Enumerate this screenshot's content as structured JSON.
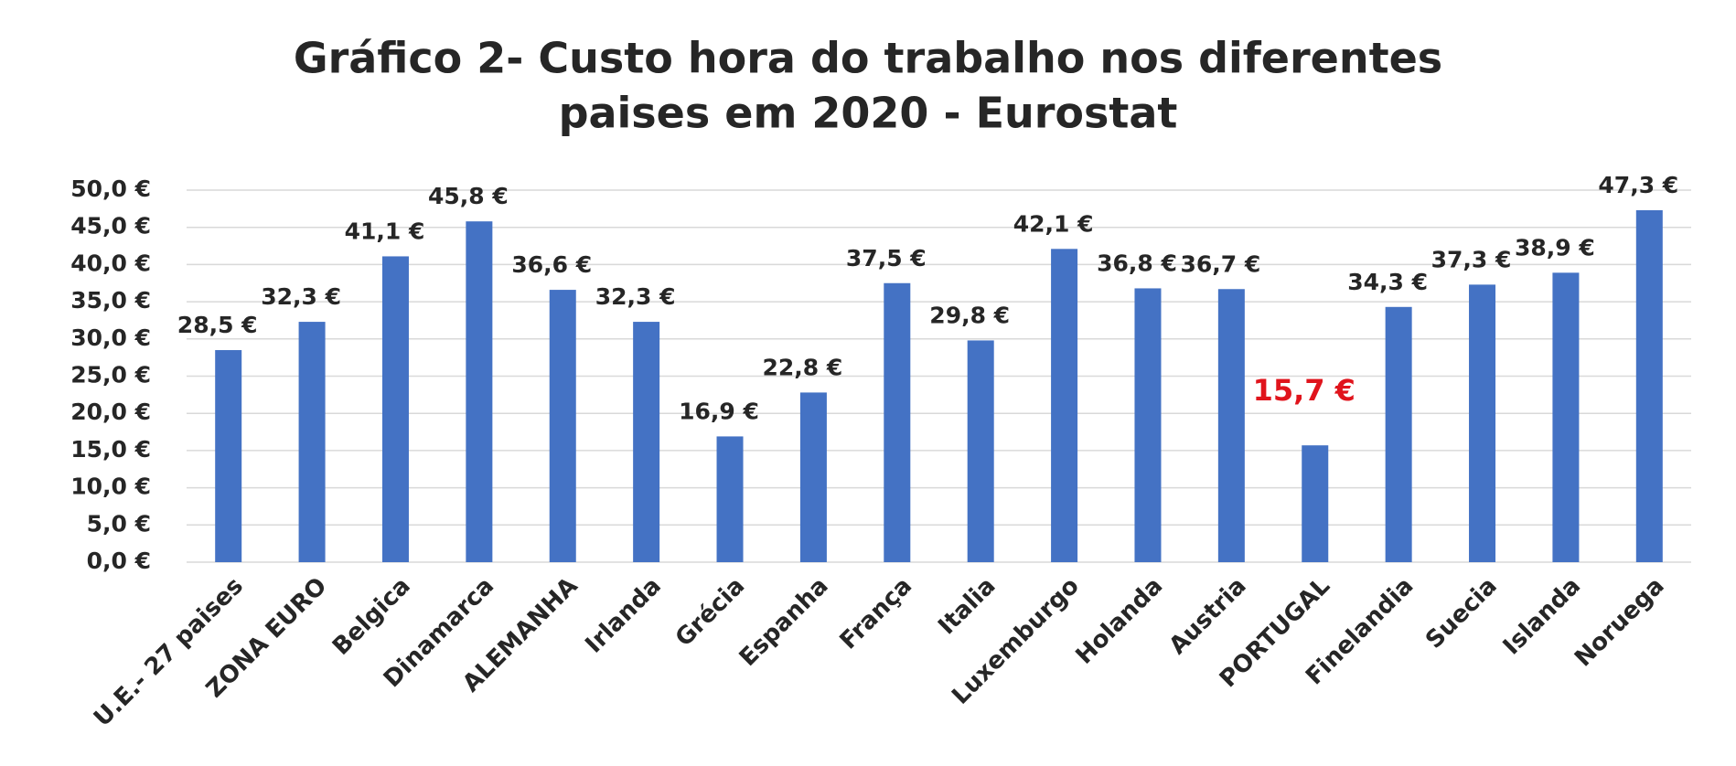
{
  "chart_data": {
    "type": "bar",
    "title": "Gráfico 2- Custo hora do trabalho  nos diferentes",
    "subtitle": "paises em 2020 - Eurostat",
    "categories": [
      "U.E.- 27 paises",
      "ZONA EURO",
      "Belgica",
      "Dinamarca",
      "ALEMANHA",
      "Irlanda",
      "Grécia",
      "Espanha",
      "França",
      "Italia",
      "Luxemburgo",
      "Holanda",
      "Austria",
      "PORTUGAL",
      "Finelandia",
      "Suecia",
      "Islanda",
      "Noruega"
    ],
    "values": [
      28.5,
      32.3,
      41.1,
      45.8,
      36.6,
      32.3,
      16.9,
      22.8,
      37.5,
      29.8,
      42.1,
      36.8,
      36.7,
      15.7,
      34.3,
      37.3,
      38.9,
      47.3
    ],
    "value_labels": [
      "28,5 €",
      "32,3 €",
      "41,1 €",
      "45,8 €",
      "36,6 €",
      "32,3 €",
      "16,9 €",
      "22,8 €",
      "37,5 €",
      "29,8 €",
      "42,1 €",
      "36,8 €",
      "36,7 €",
      "15,7 €",
      "34,3 €",
      "37,3 €",
      "38,9 €",
      "47,3 €"
    ],
    "value_label_colors": [
      "#262626",
      "#262626",
      "#262626",
      "#262626",
      "#262626",
      "#262626",
      "#262626",
      "#262626",
      "#262626",
      "#262626",
      "#262626",
      "#262626",
      "#262626",
      "#e0141c",
      "#262626",
      "#262626",
      "#262626",
      "#262626"
    ],
    "color": "#4472c4",
    "ylim": [
      0,
      50
    ],
    "yticks": [
      {
        "value": 0,
        "label": "0,0 €"
      },
      {
        "value": 5,
        "label": "5,0 €"
      },
      {
        "value": 10,
        "label": "10,0 €"
      },
      {
        "value": 15,
        "label": "15,0 €"
      },
      {
        "value": 20,
        "label": "20,0 €"
      },
      {
        "value": 25,
        "label": "25,0 €"
      },
      {
        "value": 30,
        "label": "30,0 €"
      },
      {
        "value": 35,
        "label": "35,0 €"
      },
      {
        "value": 40,
        "label": "40,0 €"
      },
      {
        "value": 45,
        "label": "45,0 €"
      },
      {
        "value": 50,
        "label": "50,0 €"
      }
    ],
    "grid": true
  }
}
